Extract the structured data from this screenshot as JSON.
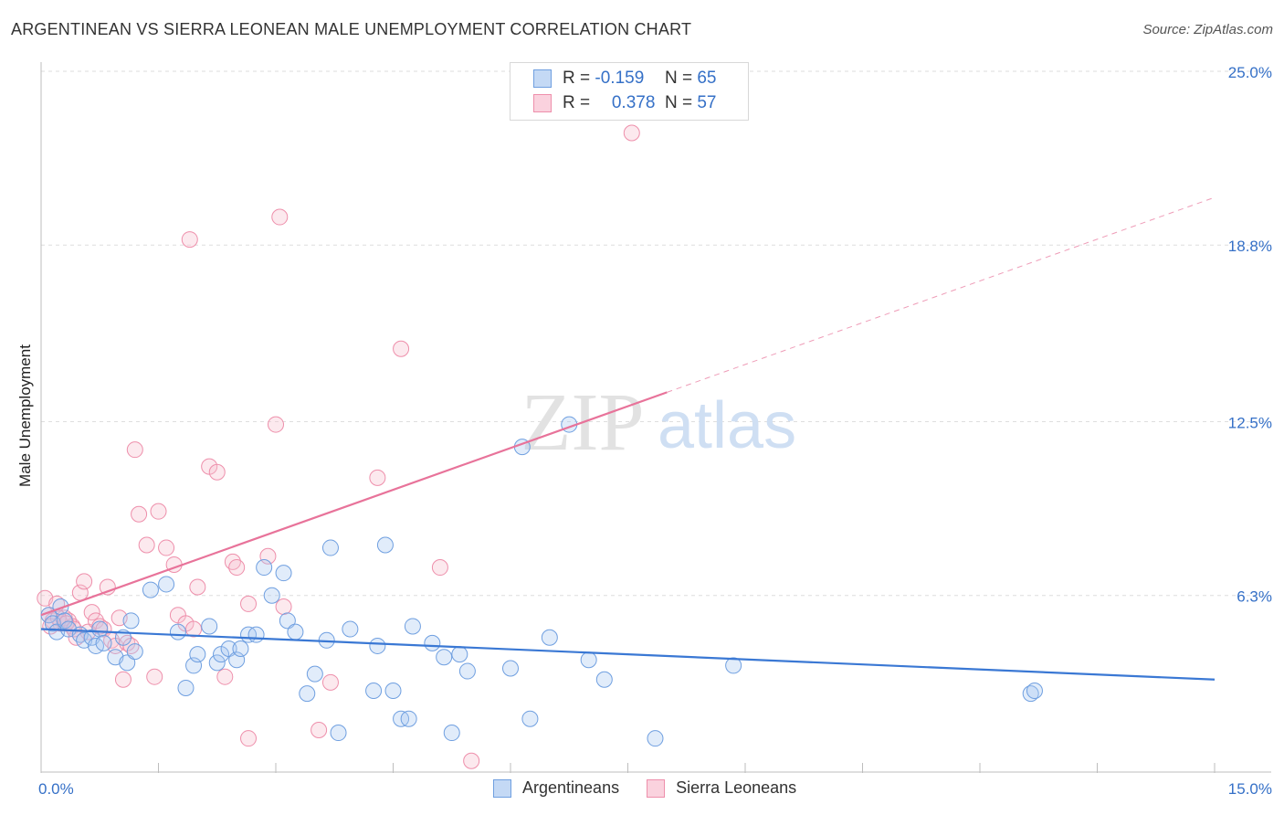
{
  "header": {
    "title": "ARGENTINEAN VS SIERRA LEONEAN MALE UNEMPLOYMENT CORRELATION CHART",
    "source": "Source: ZipAtlas.com"
  },
  "watermark": {
    "zip": "ZIP",
    "atlas": "atlas"
  },
  "legend_top": {
    "rows": [
      {
        "r_label": "R =",
        "r_value": "-0.159",
        "n_label": "N =",
        "n_value": "65",
        "color": "#a9c8f0",
        "border": "#6f9fe0"
      },
      {
        "r_label": "R =",
        "r_value": "0.378",
        "n_label": "N =",
        "n_value": "57",
        "color": "#f7bfcf",
        "border": "#ee8fab"
      }
    ]
  },
  "legend_bottom": [
    {
      "label": "Argentineans",
      "color": "#a9c8f0",
      "border": "#6f9fe0"
    },
    {
      "label": "Sierra Leoneans",
      "color": "#f7bfcf",
      "border": "#ee8fab"
    }
  ],
  "colors": {
    "blue": "#3a78d4",
    "pink": "#e8739a",
    "axis_text": "#3570c7"
  },
  "chart_data": {
    "type": "scatter",
    "title": "ARGENTINEAN VS SIERRA LEONEAN MALE UNEMPLOYMENT CORRELATION CHART",
    "xlabel": "",
    "ylabel": "Male Unemployment",
    "xlim": [
      0,
      15
    ],
    "ylim": [
      0,
      25
    ],
    "x_tick_labels": [
      "0.0%",
      "15.0%"
    ],
    "y_tick_values": [
      6.3,
      12.5,
      18.8,
      25.0
    ],
    "y_tick_labels": [
      "6.3%",
      "12.5%",
      "18.8%",
      "25.0%"
    ],
    "grid": true,
    "series": [
      {
        "name": "Argentineans",
        "r": -0.159,
        "n": 65,
        "trend": {
          "x0": 0.0,
          "y0": 5.1,
          "x1": 15.0,
          "y1": 3.3,
          "dashed_beyond": null
        },
        "points": [
          [
            0.1,
            5.6
          ],
          [
            0.15,
            5.3
          ],
          [
            0.2,
            5.0
          ],
          [
            0.25,
            5.9
          ],
          [
            0.3,
            5.4
          ],
          [
            0.35,
            5.1
          ],
          [
            0.5,
            4.9
          ],
          [
            0.55,
            4.7
          ],
          [
            0.65,
            4.8
          ],
          [
            0.75,
            5.1
          ],
          [
            0.7,
            4.5
          ],
          [
            0.8,
            4.6
          ],
          [
            0.95,
            4.1
          ],
          [
            1.05,
            4.8
          ],
          [
            1.1,
            3.9
          ],
          [
            1.15,
            5.4
          ],
          [
            1.2,
            4.3
          ],
          [
            1.4,
            6.5
          ],
          [
            1.6,
            6.7
          ],
          [
            1.75,
            5.0
          ],
          [
            1.85,
            3.0
          ],
          [
            1.95,
            3.8
          ],
          [
            2.0,
            4.2
          ],
          [
            2.15,
            5.2
          ],
          [
            2.25,
            3.9
          ],
          [
            2.3,
            4.2
          ],
          [
            2.4,
            4.4
          ],
          [
            2.5,
            4.0
          ],
          [
            2.55,
            4.4
          ],
          [
            2.65,
            4.9
          ],
          [
            2.75,
            4.9
          ],
          [
            2.85,
            7.3
          ],
          [
            2.95,
            6.3
          ],
          [
            3.1,
            7.1
          ],
          [
            3.15,
            5.4
          ],
          [
            3.25,
            5.0
          ],
          [
            3.4,
            2.8
          ],
          [
            3.5,
            3.5
          ],
          [
            3.65,
            4.7
          ],
          [
            3.7,
            8.0
          ],
          [
            3.8,
            1.4
          ],
          [
            3.95,
            5.1
          ],
          [
            4.25,
            2.9
          ],
          [
            4.3,
            4.5
          ],
          [
            4.4,
            8.1
          ],
          [
            4.5,
            2.9
          ],
          [
            4.6,
            1.9
          ],
          [
            4.7,
            1.9
          ],
          [
            4.75,
            5.2
          ],
          [
            5.0,
            4.6
          ],
          [
            5.15,
            4.1
          ],
          [
            5.25,
            1.4
          ],
          [
            5.35,
            4.2
          ],
          [
            5.45,
            3.6
          ],
          [
            6.0,
            3.7
          ],
          [
            6.15,
            11.6
          ],
          [
            6.25,
            1.9
          ],
          [
            6.5,
            4.8
          ],
          [
            6.75,
            12.4
          ],
          [
            7.0,
            4.0
          ],
          [
            7.2,
            3.3
          ],
          [
            7.85,
            1.2
          ],
          [
            8.85,
            3.8
          ],
          [
            12.65,
            2.8
          ],
          [
            12.7,
            2.9
          ]
        ]
      },
      {
        "name": "Sierra Leoneans",
        "r": 0.378,
        "n": 57,
        "trend": {
          "x0": 0.0,
          "y0": 5.6,
          "x1": 15.0,
          "y1": 20.5,
          "solid_until_x": 8.0
        },
        "points": [
          [
            0.05,
            6.2
          ],
          [
            0.1,
            5.6
          ],
          [
            0.15,
            5.4
          ],
          [
            0.2,
            6.0
          ],
          [
            0.25,
            5.3
          ],
          [
            0.3,
            5.5
          ],
          [
            0.35,
            5.4
          ],
          [
            0.4,
            5.2
          ],
          [
            0.45,
            4.8
          ],
          [
            0.5,
            6.4
          ],
          [
            0.55,
            6.8
          ],
          [
            0.6,
            5.0
          ],
          [
            0.65,
            5.7
          ],
          [
            0.7,
            5.4
          ],
          [
            0.75,
            5.2
          ],
          [
            0.8,
            5.1
          ],
          [
            0.85,
            6.6
          ],
          [
            0.9,
            4.7
          ],
          [
            0.95,
            4.5
          ],
          [
            1.0,
            5.5
          ],
          [
            1.05,
            3.3
          ],
          [
            1.1,
            4.6
          ],
          [
            1.15,
            4.5
          ],
          [
            1.2,
            11.5
          ],
          [
            1.25,
            9.2
          ],
          [
            1.35,
            8.1
          ],
          [
            1.45,
            3.4
          ],
          [
            1.5,
            9.3
          ],
          [
            1.6,
            8.0
          ],
          [
            1.7,
            7.4
          ],
          [
            1.75,
            5.6
          ],
          [
            1.85,
            5.3
          ],
          [
            1.9,
            19.0
          ],
          [
            1.95,
            5.1
          ],
          [
            2.0,
            6.6
          ],
          [
            2.15,
            10.9
          ],
          [
            2.25,
            10.7
          ],
          [
            2.35,
            3.4
          ],
          [
            2.45,
            7.5
          ],
          [
            2.5,
            7.3
          ],
          [
            2.65,
            6.0
          ],
          [
            2.65,
            1.2
          ],
          [
            2.9,
            7.7
          ],
          [
            3.0,
            12.4
          ],
          [
            3.05,
            19.8
          ],
          [
            3.1,
            5.9
          ],
          [
            3.55,
            1.5
          ],
          [
            3.7,
            3.2
          ],
          [
            4.3,
            10.5
          ],
          [
            4.6,
            15.1
          ],
          [
            5.1,
            7.3
          ],
          [
            5.5,
            0.4
          ],
          [
            7.55,
            22.8
          ],
          [
            0.12,
            5.2
          ],
          [
            0.22,
            5.5
          ],
          [
            0.32,
            5.3
          ],
          [
            0.42,
            5.1
          ]
        ]
      }
    ]
  }
}
